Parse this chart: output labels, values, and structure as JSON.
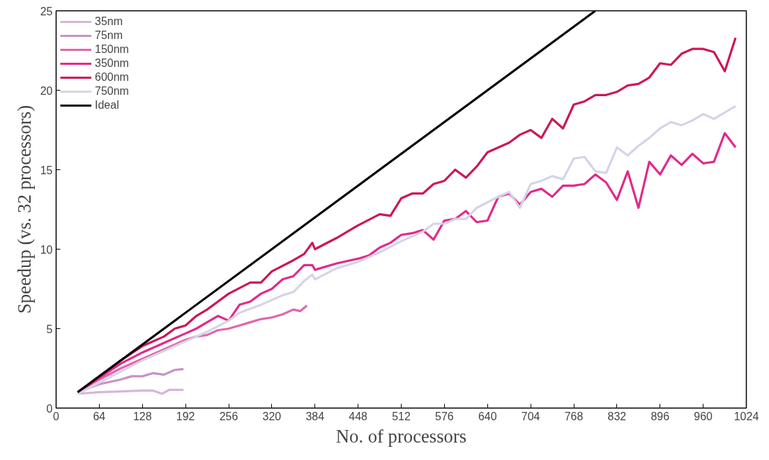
{
  "chart_data": {
    "type": "line",
    "xlabel": "No. of processors",
    "ylabel": "Speedup (vs. 32 processors)",
    "xlim": [
      0,
      1024
    ],
    "ylim": [
      0,
      25
    ],
    "xticks": [
      0,
      64,
      128,
      192,
      256,
      320,
      384,
      448,
      512,
      576,
      640,
      704,
      768,
      832,
      896,
      960,
      1024
    ],
    "yticks": [
      0,
      5,
      10,
      15,
      20,
      25
    ],
    "grid": false,
    "legend": "top left",
    "marker": "none",
    "line_style": "solid",
    "series": [
      {
        "name": "35nm",
        "color": "#d9b4dc",
        "x": [
          32,
          64,
          96,
          128,
          144,
          157,
          168,
          176,
          189
        ],
        "values": [
          0.9,
          1.0,
          1.05,
          1.1,
          1.1,
          0.9,
          1.15,
          1.15,
          1.15
        ]
      },
      {
        "name": "75nm",
        "color": "#c990c4",
        "x": [
          32,
          64,
          96,
          112,
          128,
          144,
          160,
          176,
          189
        ],
        "values": [
          1.0,
          1.5,
          1.8,
          2.0,
          2.0,
          2.2,
          2.1,
          2.4,
          2.45
        ]
      },
      {
        "name": "150nm",
        "color": "#e066aa",
        "x": [
          32,
          64,
          96,
          128,
          160,
          192,
          208,
          224,
          240,
          256,
          272,
          288,
          304,
          320,
          336,
          352,
          362,
          372
        ],
        "values": [
          1.0,
          1.8,
          2.5,
          3.1,
          3.7,
          4.3,
          4.5,
          4.6,
          4.9,
          5.0,
          5.2,
          5.4,
          5.6,
          5.7,
          5.9,
          6.2,
          6.1,
          6.45
        ]
      },
      {
        "name": "350nm",
        "color": "#e2298a",
        "x": [
          32,
          64,
          96,
          128,
          160,
          192,
          208,
          224,
          240,
          256,
          272,
          288,
          304,
          320,
          336,
          352,
          368,
          380,
          384,
          416,
          448,
          464,
          480,
          496,
          512,
          528,
          544,
          560,
          576,
          592,
          608,
          624,
          640,
          656,
          672,
          688,
          704,
          720,
          736,
          752,
          768,
          784,
          800,
          816,
          832,
          848,
          864,
          880,
          896,
          912,
          928,
          944,
          960,
          976,
          992,
          1008
        ],
        "values": [
          1.0,
          1.9,
          2.8,
          3.5,
          4.1,
          4.7,
          5.0,
          5.4,
          5.8,
          5.5,
          6.5,
          6.7,
          7.2,
          7.5,
          8.1,
          8.3,
          9.0,
          9.0,
          8.7,
          9.1,
          9.4,
          9.6,
          10.1,
          10.4,
          10.9,
          11.0,
          11.2,
          10.6,
          11.8,
          11.9,
          12.4,
          11.7,
          11.8,
          13.3,
          13.5,
          12.8,
          13.6,
          13.8,
          13.3,
          14.0,
          14.0,
          14.1,
          14.7,
          14.2,
          13.1,
          14.9,
          12.6,
          15.5,
          14.7,
          15.9,
          15.3,
          16.0,
          15.4,
          15.5,
          17.3,
          16.4
        ]
      },
      {
        "name": "600nm",
        "color": "#cc1658",
        "x": [
          32,
          64,
          96,
          128,
          160,
          176,
          192,
          208,
          224,
          240,
          256,
          288,
          304,
          320,
          352,
          368,
          380,
          384,
          416,
          448,
          480,
          496,
          512,
          528,
          544,
          560,
          576,
          592,
          608,
          624,
          640,
          672,
          688,
          704,
          720,
          736,
          752,
          768,
          784,
          800,
          816,
          832,
          848,
          864,
          880,
          896,
          912,
          928,
          944,
          960,
          976,
          992,
          1008
        ],
        "values": [
          1.0,
          2.0,
          3.0,
          3.9,
          4.5,
          5.0,
          5.2,
          5.8,
          6.2,
          6.7,
          7.2,
          7.9,
          7.9,
          8.6,
          9.3,
          9.7,
          10.4,
          10.0,
          10.7,
          11.5,
          12.2,
          12.1,
          13.2,
          13.5,
          13.5,
          14.1,
          14.3,
          15.0,
          14.5,
          15.2,
          16.1,
          16.7,
          17.2,
          17.5,
          17.0,
          18.2,
          17.6,
          19.1,
          19.3,
          19.7,
          19.7,
          19.9,
          20.3,
          20.4,
          20.8,
          21.7,
          21.6,
          22.3,
          22.6,
          22.6,
          22.4,
          21.2,
          23.3
        ]
      },
      {
        "name": "750nm",
        "color": "#d4d4e8",
        "x": [
          32,
          64,
          96,
          128,
          160,
          192,
          224,
          256,
          272,
          304,
          336,
          352,
          368,
          380,
          384,
          416,
          448,
          480,
          512,
          544,
          560,
          576,
          592,
          608,
          624,
          656,
          672,
          688,
          704,
          720,
          736,
          752,
          768,
          784,
          800,
          816,
          832,
          848,
          864,
          880,
          896,
          912,
          928,
          944,
          960,
          976,
          992,
          1008
        ],
        "values": [
          0.9,
          1.6,
          2.3,
          3.0,
          3.6,
          4.2,
          4.8,
          5.5,
          6.0,
          6.5,
          7.1,
          7.3,
          8.0,
          8.4,
          8.1,
          8.8,
          9.2,
          9.8,
          10.5,
          11.1,
          11.6,
          11.6,
          11.9,
          11.9,
          12.6,
          13.3,
          13.6,
          12.6,
          14.1,
          14.3,
          14.6,
          14.4,
          15.7,
          15.8,
          14.9,
          14.8,
          16.4,
          15.9,
          16.5,
          17.0,
          17.6,
          18.0,
          17.8,
          18.1,
          18.5,
          18.2,
          18.6,
          19.0
        ]
      },
      {
        "name": "Ideal",
        "color": "#000000",
        "x": [
          32,
          800
        ],
        "values": [
          1,
          25
        ]
      }
    ]
  }
}
